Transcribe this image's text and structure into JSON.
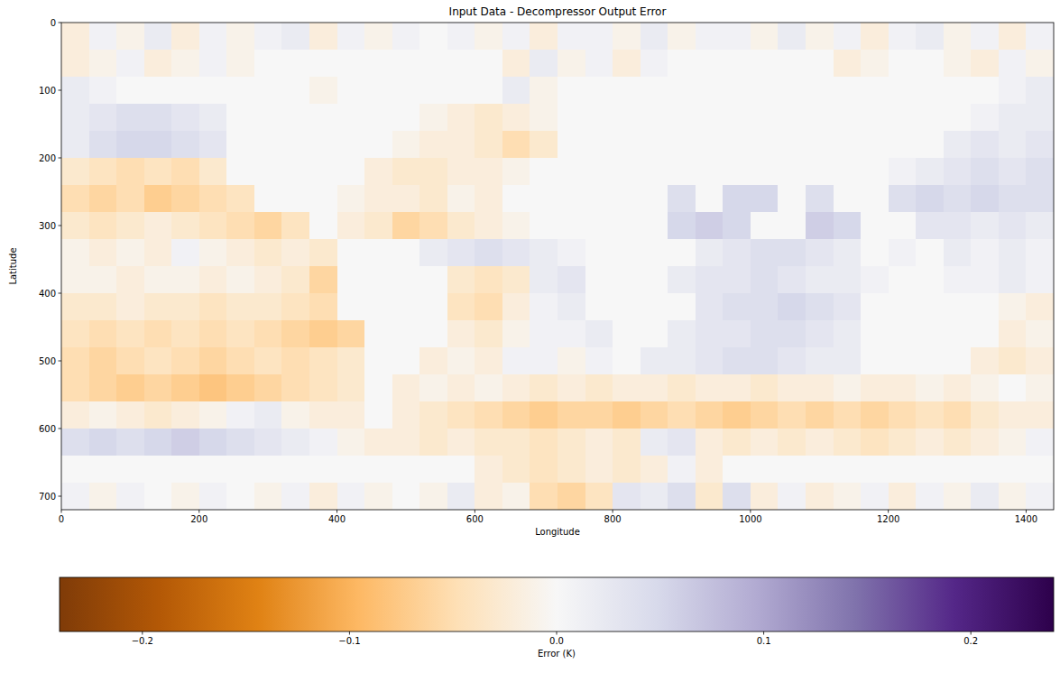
{
  "chart_data": {
    "type": "heatmap",
    "title": "Input Data - Decompressor Output Error",
    "x_label": "Longitude",
    "y_label": "Latitude",
    "xlim": [
      0,
      1440
    ],
    "ylim": [
      720,
      0
    ],
    "xticks": [
      0,
      200,
      400,
      600,
      800,
      1000,
      1200,
      1400
    ],
    "yticks": [
      0,
      100,
      200,
      300,
      400,
      500,
      600,
      700
    ],
    "x_bins": [
      0,
      40,
      80,
      120,
      160,
      200,
      240,
      280,
      320,
      360,
      400,
      440,
      480,
      520,
      560,
      600,
      640,
      680,
      720,
      760,
      800,
      840,
      880,
      920,
      960,
      1000,
      1040,
      1080,
      1120,
      1160,
      1200,
      1240,
      1280,
      1320,
      1360,
      1400,
      1440
    ],
    "y_bins": [
      0,
      40,
      80,
      120,
      160,
      200,
      240,
      280,
      320,
      360,
      400,
      440,
      480,
      520,
      560,
      600,
      640,
      680,
      720
    ],
    "cells": [
      [
        -0.02,
        0.01,
        -0.01,
        0.02,
        -0.02,
        0.01,
        -0.01,
        0.01,
        0.02,
        -0.02,
        0.01,
        -0.01,
        0.01,
        0,
        0.01,
        -0.01,
        0.01,
        -0.02,
        0.01,
        0.01,
        -0.01,
        0.02,
        -0.01,
        0.01,
        0.01,
        -0.01,
        0.02,
        -0.01,
        0.01,
        -0.02,
        0.01,
        0.02,
        -0.01,
        0.01,
        -0.02,
        0.01
      ],
      [
        -0.02,
        -0.01,
        0.01,
        -0.02,
        -0.01,
        0.01,
        -0.01,
        0,
        0,
        0,
        0,
        0,
        0,
        0,
        0,
        0,
        -0.02,
        0.02,
        -0.01,
        0.01,
        -0.02,
        0.01,
        0,
        0,
        0,
        0,
        0,
        0,
        -0.02,
        -0.01,
        0,
        0,
        -0.01,
        -0.02,
        0.01,
        -0.01
      ],
      [
        0.02,
        0.01,
        0,
        0,
        0,
        0,
        0,
        0,
        0,
        -0.01,
        0,
        0,
        0,
        0,
        0,
        0,
        0.02,
        -0.01,
        0,
        0,
        0,
        0,
        0,
        0,
        0,
        0,
        0,
        0,
        0,
        0,
        0,
        0,
        0,
        0,
        0.01,
        0.02
      ],
      [
        0.02,
        0.03,
        0.04,
        0.04,
        0.03,
        0.02,
        0,
        0,
        0,
        0,
        0,
        0,
        0,
        -0.01,
        -0.02,
        -0.03,
        -0.02,
        -0.01,
        0,
        0,
        0,
        0,
        0,
        0,
        0,
        0,
        0,
        0,
        0,
        0,
        0,
        0,
        0,
        0.01,
        0.02,
        0.02
      ],
      [
        0.02,
        0.04,
        0.05,
        0.05,
        0.04,
        0.03,
        0,
        0,
        0,
        0,
        0,
        0,
        -0.01,
        -0.02,
        -0.02,
        -0.03,
        -0.05,
        -0.03,
        0,
        0,
        0,
        0,
        0,
        0,
        0,
        0,
        0,
        0,
        0,
        0,
        0,
        0,
        0.02,
        0.03,
        0.02,
        0.03
      ],
      [
        -0.03,
        -0.04,
        -0.05,
        -0.04,
        -0.05,
        -0.03,
        0,
        0,
        0,
        0,
        0,
        -0.02,
        -0.03,
        -0.03,
        -0.02,
        -0.02,
        -0.01,
        0,
        0,
        0,
        0,
        0,
        0,
        0,
        0,
        0,
        0,
        0,
        0,
        0,
        0.01,
        0.02,
        0.03,
        0.04,
        0.03,
        0.04
      ],
      [
        -0.05,
        -0.06,
        -0.05,
        -0.07,
        -0.06,
        -0.05,
        -0.04,
        0,
        0,
        0,
        -0.01,
        -0.02,
        -0.02,
        -0.03,
        -0.01,
        -0.02,
        0,
        0,
        0,
        0,
        0,
        0,
        0.04,
        0,
        0.05,
        0.05,
        0,
        0.04,
        0,
        0,
        0.04,
        0.05,
        0.04,
        0.05,
        0.04,
        0.04
      ],
      [
        -0.03,
        -0.04,
        -0.03,
        -0.02,
        -0.03,
        -0.04,
        -0.05,
        -0.06,
        -0.04,
        0,
        -0.02,
        -0.03,
        -0.06,
        -0.05,
        -0.03,
        -0.02,
        -0.01,
        0,
        0,
        0,
        0,
        0,
        0.05,
        0.06,
        0.05,
        0,
        0,
        0.06,
        0.05,
        0,
        0,
        0.03,
        0.03,
        0.02,
        0.03,
        0.02
      ],
      [
        -0.01,
        -0.02,
        -0.01,
        -0.02,
        0.01,
        -0.01,
        -0.02,
        -0.03,
        -0.02,
        -0.03,
        0,
        0,
        0,
        0.02,
        0.03,
        0.04,
        0.03,
        0.02,
        0.01,
        0,
        0,
        0,
        0,
        0.02,
        0.03,
        0.04,
        0.04,
        0.03,
        0.02,
        0,
        0.01,
        0,
        0.02,
        0.01,
        0.02,
        0.01
      ],
      [
        -0.01,
        -0.01,
        -0.02,
        -0.01,
        -0.01,
        -0.02,
        -0.01,
        -0.02,
        -0.03,
        -0.06,
        0,
        0,
        0,
        0,
        -0.03,
        -0.04,
        -0.03,
        0.02,
        0.03,
        0,
        0,
        0,
        0.02,
        0.03,
        0.03,
        0.04,
        0.03,
        0.02,
        0.02,
        0.01,
        0,
        0,
        0.01,
        0.01,
        0.02,
        0.01
      ],
      [
        -0.03,
        -0.03,
        -0.02,
        -0.03,
        -0.03,
        -0.04,
        -0.03,
        -0.03,
        -0.04,
        -0.05,
        0,
        0,
        0,
        0,
        -0.04,
        -0.05,
        -0.02,
        0.01,
        0.02,
        0,
        0,
        0,
        0,
        0.03,
        0.04,
        0.04,
        0.05,
        0.04,
        0.03,
        0,
        0,
        0,
        0,
        0,
        -0.01,
        -0.02
      ],
      [
        -0.04,
        -0.05,
        -0.04,
        -0.05,
        -0.04,
        -0.05,
        -0.04,
        -0.05,
        -0.06,
        -0.07,
        -0.06,
        0,
        0,
        0,
        -0.02,
        -0.03,
        -0.01,
        0.01,
        0.01,
        0.02,
        0,
        0,
        0.02,
        0.03,
        0.03,
        0.04,
        0.04,
        0.03,
        0.02,
        0,
        0,
        0,
        0,
        0,
        -0.02,
        -0.01
      ],
      [
        -0.05,
        -0.06,
        -0.05,
        -0.04,
        -0.05,
        -0.06,
        -0.05,
        -0.04,
        -0.05,
        -0.04,
        -0.03,
        0,
        0,
        -0.02,
        -0.01,
        -0.02,
        0.01,
        0.01,
        -0.01,
        0.01,
        0,
        0.02,
        0.02,
        0.03,
        0.04,
        0.04,
        0.03,
        0.02,
        0.02,
        0,
        0,
        0,
        0,
        -0.02,
        -0.03,
        -0.02
      ],
      [
        -0.05,
        -0.06,
        -0.07,
        -0.06,
        -0.07,
        -0.08,
        -0.07,
        -0.06,
        -0.05,
        -0.04,
        -0.03,
        0,
        -0.02,
        -0.01,
        -0.02,
        -0.01,
        -0.02,
        -0.03,
        -0.02,
        -0.03,
        -0.02,
        -0.02,
        -0.03,
        -0.02,
        -0.02,
        -0.03,
        -0.02,
        -0.02,
        -0.01,
        -0.02,
        -0.02,
        -0.01,
        -0.02,
        -0.01,
        0,
        -0.01
      ],
      [
        -0.02,
        -0.01,
        -0.02,
        -0.03,
        -0.02,
        -0.01,
        0.01,
        0.02,
        -0.01,
        -0.02,
        -0.02,
        0,
        -0.02,
        -0.03,
        -0.04,
        -0.05,
        -0.06,
        -0.07,
        -0.06,
        -0.06,
        -0.07,
        -0.06,
        -0.05,
        -0.06,
        -0.07,
        -0.06,
        -0.05,
        -0.06,
        -0.05,
        -0.06,
        -0.05,
        -0.04,
        -0.05,
        -0.03,
        -0.02,
        -0.02
      ],
      [
        0.04,
        0.05,
        0.04,
        0.05,
        0.06,
        0.05,
        0.04,
        0.03,
        0.02,
        0.01,
        -0.01,
        -0.02,
        -0.02,
        -0.03,
        -0.02,
        -0.03,
        -0.03,
        -0.04,
        -0.03,
        -0.02,
        -0.03,
        0.02,
        0.03,
        -0.02,
        -0.03,
        -0.02,
        -0.03,
        -0.02,
        -0.03,
        -0.04,
        -0.03,
        -0.02,
        -0.03,
        -0.02,
        -0.01,
        0.01
      ],
      [
        0,
        0,
        0,
        0,
        0,
        0,
        0,
        0,
        0,
        0,
        0,
        0,
        0,
        0,
        0,
        -0.02,
        -0.03,
        -0.04,
        -0.03,
        -0.02,
        -0.03,
        -0.02,
        0.01,
        -0.02,
        0,
        0,
        0,
        0,
        0,
        0,
        0,
        0,
        0,
        0,
        0,
        0
      ],
      [
        0.01,
        -0.01,
        0.01,
        0,
        -0.01,
        0.01,
        0,
        -0.01,
        0.01,
        -0.02,
        0.01,
        -0.01,
        0,
        -0.01,
        0.02,
        -0.02,
        -0.01,
        -0.05,
        -0.06,
        -0.04,
        0.03,
        0.02,
        0.04,
        -0.03,
        0.04,
        -0.02,
        0.01,
        -0.02,
        -0.01,
        0.01,
        -0.02,
        0.01,
        -0.01,
        0.02,
        -0.01,
        0.01
      ]
    ],
    "colorbar": {
      "label": "Error (K)",
      "range": [
        -0.24,
        0.24
      ],
      "ticks": [
        {
          "value": -0.2,
          "label": "−0.2"
        },
        {
          "value": -0.1,
          "label": "−0.1"
        },
        {
          "value": 0,
          "label": "0.0"
        },
        {
          "value": 0.1,
          "label": "0.1"
        },
        {
          "value": 0.2,
          "label": "0.2"
        }
      ]
    }
  }
}
